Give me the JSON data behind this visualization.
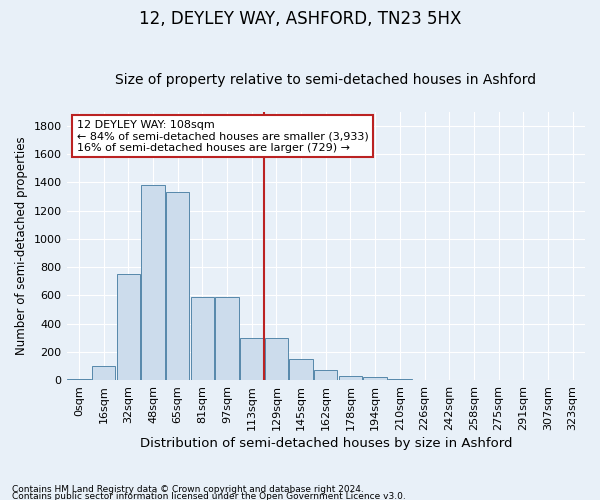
{
  "title": "12, DEYLEY WAY, ASHFORD, TN23 5HX",
  "subtitle": "Size of property relative to semi-detached houses in Ashford",
  "xlabel": "Distribution of semi-detached houses by size in Ashford",
  "ylabel": "Number of semi-detached properties",
  "footnote1": "Contains HM Land Registry data © Crown copyright and database right 2024.",
  "footnote2": "Contains public sector information licensed under the Open Government Licence v3.0.",
  "bar_labels": [
    "0sqm",
    "16sqm",
    "32sqm",
    "48sqm",
    "65sqm",
    "81sqm",
    "97sqm",
    "113sqm",
    "129sqm",
    "145sqm",
    "162sqm",
    "178sqm",
    "194sqm",
    "210sqm",
    "226sqm",
    "242sqm",
    "258sqm",
    "275sqm",
    "291sqm",
    "307sqm",
    "323sqm"
  ],
  "bar_values": [
    5,
    100,
    750,
    1380,
    1330,
    590,
    590,
    295,
    295,
    150,
    70,
    30,
    20,
    5,
    0,
    0,
    0,
    0,
    0,
    0,
    0
  ],
  "bar_color": "#ccdcec",
  "bar_edge_color": "#5588aa",
  "vline_x": 7.5,
  "vline_color": "#bb2222",
  "annotation_line1": "12 DEYLEY WAY: 108sqm",
  "annotation_line2": "← 84% of semi-detached houses are smaller (3,933)",
  "annotation_line3": "16% of semi-detached houses are larger (729) →",
  "annotation_box_color": "#ffffff",
  "annotation_box_edge": "#bb2222",
  "ylim": [
    0,
    1900
  ],
  "yticks": [
    0,
    200,
    400,
    600,
    800,
    1000,
    1200,
    1400,
    1600,
    1800
  ],
  "title_fontsize": 12,
  "subtitle_fontsize": 10,
  "xlabel_fontsize": 9.5,
  "ylabel_fontsize": 8.5,
  "tick_fontsize": 8,
  "annot_fontsize": 8,
  "bg_color": "#e8f0f8",
  "plot_bg_color": "#e8f0f8",
  "grid_color": "#ffffff"
}
